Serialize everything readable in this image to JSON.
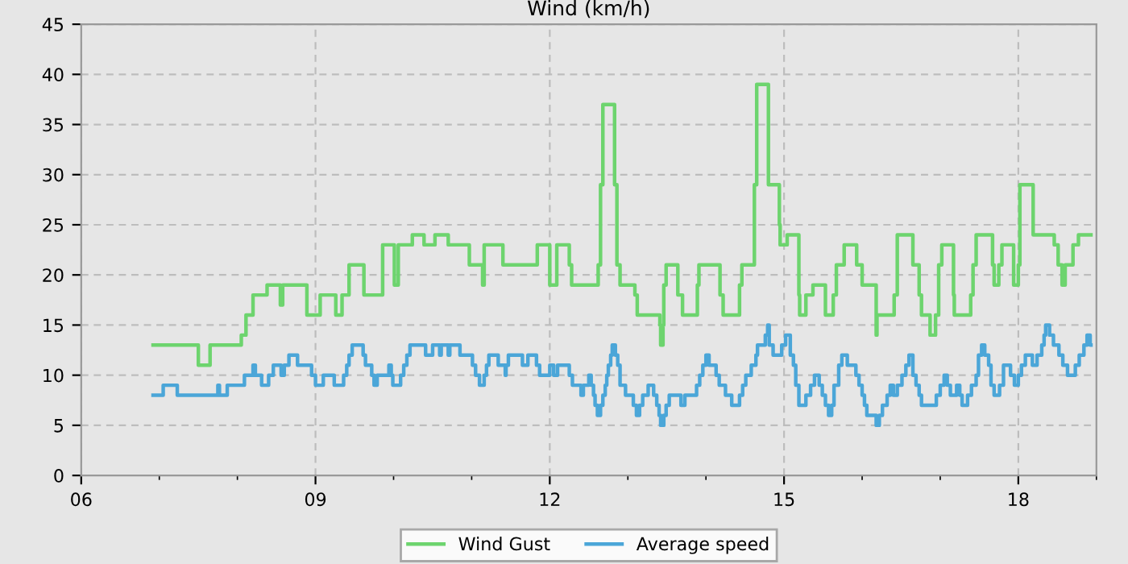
{
  "chart_data": {
    "type": "step",
    "title": "Wind (km/h)",
    "xlim": [
      6,
      19
    ],
    "ylim": [
      0,
      45
    ],
    "xticks": [
      {
        "value": 6,
        "label": "06"
      },
      {
        "value": 7,
        "label": null
      },
      {
        "value": 8,
        "label": null
      },
      {
        "value": 9,
        "label": "09"
      },
      {
        "value": 10,
        "label": null
      },
      {
        "value": 11,
        "label": null
      },
      {
        "value": 12,
        "label": "12"
      },
      {
        "value": 13,
        "label": null
      },
      {
        "value": 14,
        "label": null
      },
      {
        "value": 15,
        "label": "15"
      },
      {
        "value": 16,
        "label": null
      },
      {
        "value": 17,
        "label": null
      },
      {
        "value": 18,
        "label": "18"
      },
      {
        "value": 19,
        "label": null
      }
    ],
    "yticks": [
      0,
      5,
      10,
      15,
      20,
      25,
      30,
      35,
      40,
      45
    ],
    "grid": true,
    "legend": "bottom",
    "line_style": "solid",
    "marker": "none",
    "series": [
      {
        "name": "Wind Gust",
        "color": "#6dd46e",
        "x": [
          6.92,
          7.5,
          7.65,
          8.05,
          8.11,
          8.2,
          8.38,
          8.55,
          8.58,
          8.89,
          9.06,
          9.26,
          9.34,
          9.43,
          9.62,
          9.86,
          10.01,
          10.06,
          10.24,
          10.39,
          10.53,
          10.7,
          10.97,
          11.14,
          11.16,
          11.4,
          11.84,
          12.0,
          12.09,
          12.25,
          12.28,
          12.62,
          12.65,
          12.68,
          12.83,
          12.86,
          12.9,
          13.09,
          13.12,
          13.41,
          13.42,
          13.45,
          13.46,
          13.49,
          13.64,
          13.7,
          13.89,
          13.91,
          14.18,
          14.22,
          14.43,
          14.46,
          14.62,
          14.65,
          14.8,
          14.94,
          14.95,
          15.04,
          15.19,
          15.2,
          15.28,
          15.37,
          15.53,
          15.63,
          15.67,
          15.77,
          15.93,
          16.0,
          16.18,
          16.19,
          16.41,
          16.45,
          16.65,
          16.73,
          16.76,
          16.87,
          16.94,
          16.98,
          17.02,
          17.17,
          17.18,
          17.39,
          17.42,
          17.46,
          17.67,
          17.69,
          17.75,
          17.79,
          17.94,
          18.0,
          18.02,
          18.19,
          18.46,
          18.51,
          18.56,
          18.6,
          18.7,
          18.77,
          18.93
        ],
        "values": [
          13,
          11,
          13,
          14,
          16,
          18,
          19,
          17,
          19,
          16,
          18,
          16,
          18,
          21,
          18,
          23,
          19,
          23,
          24,
          23,
          24,
          23,
          21,
          19,
          23,
          21,
          23,
          19,
          23,
          21,
          19,
          21,
          29,
          37,
          29,
          21,
          19,
          18,
          16,
          15,
          13,
          15,
          19,
          21,
          18,
          16,
          19,
          21,
          18,
          16,
          19,
          21,
          29,
          39,
          29,
          25,
          23,
          24,
          18,
          16,
          18,
          19,
          16,
          18,
          21,
          23,
          21,
          19,
          14,
          16,
          18,
          24,
          21,
          18,
          16,
          14,
          16,
          21,
          23,
          18,
          16,
          18,
          21,
          24,
          21,
          19,
          21,
          23,
          19,
          21,
          29,
          24,
          23,
          21,
          19,
          21,
          23,
          24,
          24
        ]
      },
      {
        "name": "Average speed",
        "color": "#4ba6d8",
        "x": [
          6.92,
          7.05,
          7.23,
          7.75,
          7.77,
          7.87,
          8.09,
          8.2,
          8.23,
          8.31,
          8.4,
          8.46,
          8.56,
          8.6,
          8.66,
          8.77,
          8.95,
          9.0,
          9.1,
          9.24,
          9.36,
          9.4,
          9.43,
          9.47,
          9.61,
          9.64,
          9.72,
          9.75,
          9.79,
          9.94,
          9.97,
          9.99,
          10.09,
          10.13,
          10.17,
          10.21,
          10.41,
          10.5,
          10.59,
          10.61,
          10.7,
          10.72,
          10.85,
          11.01,
          11.05,
          11.1,
          11.16,
          11.19,
          11.22,
          11.34,
          11.43,
          11.44,
          11.47,
          11.65,
          11.72,
          11.83,
          11.87,
          12.0,
          12.05,
          12.1,
          12.25,
          12.29,
          12.4,
          12.43,
          12.5,
          12.53,
          12.56,
          12.58,
          12.61,
          12.65,
          12.68,
          12.71,
          12.73,
          12.75,
          12.78,
          12.8,
          12.84,
          12.87,
          12.9,
          12.97,
          13.07,
          13.11,
          13.15,
          13.19,
          13.26,
          13.33,
          13.37,
          13.4,
          13.42,
          13.46,
          13.49,
          13.53,
          13.68,
          13.73,
          13.88,
          13.92,
          13.96,
          14.0,
          14.04,
          14.13,
          14.17,
          14.25,
          14.33,
          14.43,
          14.47,
          14.51,
          14.58,
          14.64,
          14.66,
          14.76,
          14.79,
          14.81,
          14.86,
          14.97,
          15.02,
          15.08,
          15.12,
          15.15,
          15.19,
          15.28,
          15.34,
          15.39,
          15.45,
          15.49,
          15.53,
          15.57,
          15.61,
          15.64,
          15.7,
          15.74,
          15.81,
          15.92,
          15.96,
          16.0,
          16.03,
          16.06,
          16.18,
          16.22,
          16.26,
          16.32,
          16.36,
          16.4,
          16.45,
          16.51,
          16.56,
          16.6,
          16.65,
          16.69,
          16.73,
          16.76,
          16.95,
          17.0,
          17.05,
          17.09,
          17.13,
          17.21,
          17.25,
          17.28,
          17.35,
          17.4,
          17.46,
          17.49,
          17.53,
          17.57,
          17.62,
          17.65,
          17.69,
          17.76,
          17.81,
          17.9,
          17.95,
          18.0,
          18.04,
          18.09,
          18.18,
          18.24,
          18.3,
          18.33,
          18.35,
          18.4,
          18.45,
          18.52,
          18.57,
          18.63,
          18.73,
          18.78,
          18.84,
          18.88,
          18.92,
          18.93
        ],
        "values": [
          8,
          9,
          8,
          9,
          8,
          9,
          10,
          11,
          10,
          9,
          10,
          11,
          10,
          11,
          12,
          11,
          10,
          9,
          10,
          9,
          10,
          11,
          12,
          13,
          12,
          11,
          10,
          9,
          10,
          11,
          10,
          9,
          10,
          11,
          12,
          13,
          12,
          13,
          12,
          13,
          12,
          13,
          12,
          11,
          10,
          9,
          10,
          11,
          12,
          11,
          10,
          11,
          12,
          11,
          12,
          11,
          10,
          11,
          10,
          11,
          10,
          9,
          8,
          9,
          10,
          9,
          8,
          7,
          6,
          7,
          8,
          9,
          10,
          11,
          12,
          13,
          12,
          11,
          9,
          8,
          7,
          6,
          7,
          8,
          9,
          8,
          7,
          6,
          5,
          6,
          7,
          8,
          7,
          8,
          9,
          10,
          11,
          12,
          11,
          10,
          9,
          8,
          7,
          8,
          9,
          10,
          11,
          12,
          13,
          14,
          15,
          13,
          12,
          13,
          14,
          12,
          11,
          9,
          7,
          8,
          9,
          10,
          9,
          8,
          7,
          6,
          7,
          9,
          11,
          12,
          11,
          10,
          9,
          8,
          7,
          6,
          5,
          6,
          7,
          8,
          9,
          8,
          9,
          10,
          11,
          12,
          10,
          9,
          8,
          7,
          8,
          9,
          10,
          9,
          8,
          9,
          8,
          7,
          8,
          9,
          10,
          12,
          13,
          12,
          11,
          9,
          8,
          9,
          11,
          10,
          9,
          10,
          11,
          12,
          11,
          12,
          13,
          14,
          15,
          14,
          13,
          12,
          11,
          10,
          11,
          12,
          13,
          14,
          13,
          13
        ]
      }
    ]
  }
}
